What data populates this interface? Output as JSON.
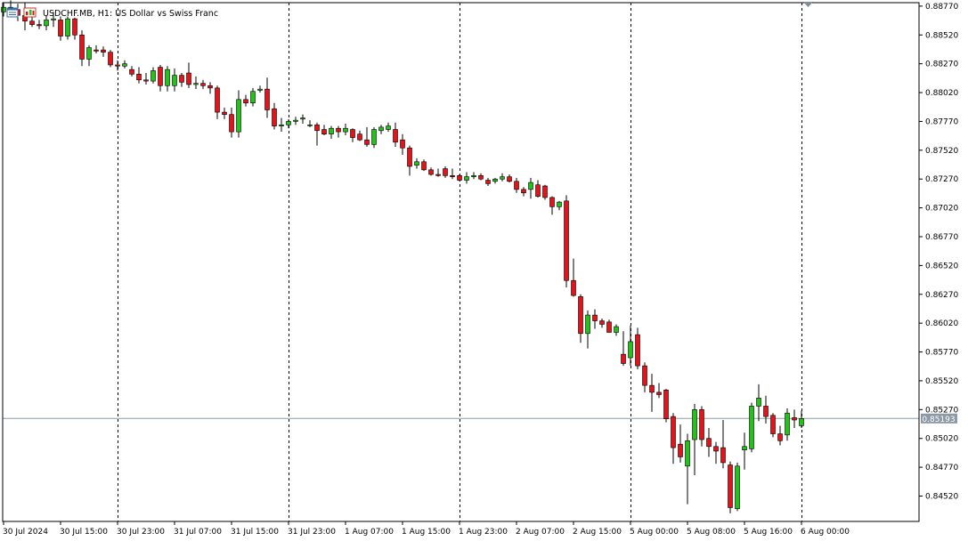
{
  "header": {
    "symbol_title": "USDCHF.MB, H1:  US Dollar vs Swiss Franc"
  },
  "icons": [
    "chart-window-icon",
    "trading-signals-icon",
    "chart-shift-marker-icon"
  ],
  "colors": {
    "bull": "#26c21c",
    "bear": "#e3151b",
    "wick": "#000000",
    "grid": "#000000",
    "bid_line": "#8c9aa6",
    "bid_tag": "#8c9aa6",
    "frame": "#000000"
  },
  "current_price": {
    "value": 0.85193,
    "label": "0.85193"
  },
  "chart_data": {
    "type": "candlestick",
    "symbol": "USDCHF.MB",
    "timeframe": "H1",
    "title": "USDCHF.MB, H1:  US Dollar vs Swiss Franc",
    "ylim": [
      0.843,
      0.888
    ],
    "y_ticks": [
      0.8877,
      0.8852,
      0.8827,
      0.8802,
      0.8777,
      0.8752,
      0.8727,
      0.8702,
      0.8677,
      0.8652,
      0.8627,
      0.8602,
      0.8577,
      0.8552,
      0.8527,
      0.8502,
      0.8477,
      0.8452
    ],
    "y_tick_labels": [
      "0.88770",
      "0.88520",
      "0.88270",
      "0.88020",
      "0.87770",
      "0.87520",
      "0.87270",
      "0.87020",
      "0.86770",
      "0.86520",
      "0.86270",
      "0.86020",
      "0.85770",
      "0.85520",
      "0.85270",
      "0.85020",
      "0.84770",
      "0.84520"
    ],
    "x_tick_labels": [
      "30 Jul 2024",
      "30 Jul 15:00",
      "30 Jul 23:00",
      "31 Jul 07:00",
      "31 Jul 15:00",
      "31 Jul 23:00",
      "1 Aug 07:00",
      "1 Aug 15:00",
      "1 Aug 23:00",
      "2 Aug 07:00",
      "2 Aug 15:00",
      "5 Aug 00:00",
      "5 Aug 08:00",
      "5 Aug 16:00",
      "6 Aug 00:00"
    ],
    "x_tick_bar_index": [
      0,
      8,
      16,
      24,
      32,
      40,
      48,
      56,
      64,
      72,
      80,
      88,
      96,
      104,
      112
    ],
    "day_separator_labels": [
      "30 Jul 23:00",
      "31 Jul 23:00",
      "1 Aug 23:00",
      "5 Aug 00:00",
      "6 Aug 00:00"
    ],
    "grid": false,
    "candles": [
      {
        "o": 0.8872,
        "h": 0.888,
        "l": 0.8868,
        "c": 0.8876
      },
      {
        "o": 0.8876,
        "h": 0.8882,
        "l": 0.887,
        "c": 0.8874
      },
      {
        "o": 0.8874,
        "h": 0.8879,
        "l": 0.8864,
        "c": 0.8869
      },
      {
        "o": 0.8869,
        "h": 0.888,
        "l": 0.8856,
        "c": 0.8864
      },
      {
        "o": 0.8864,
        "h": 0.8868,
        "l": 0.8859,
        "c": 0.8861
      },
      {
        "o": 0.8861,
        "h": 0.8865,
        "l": 0.8857,
        "c": 0.886
      },
      {
        "o": 0.886,
        "h": 0.8869,
        "l": 0.8856,
        "c": 0.8865
      },
      {
        "o": 0.8865,
        "h": 0.8872,
        "l": 0.8859,
        "c": 0.8866
      },
      {
        "o": 0.8865,
        "h": 0.8868,
        "l": 0.8847,
        "c": 0.8851
      },
      {
        "o": 0.8851,
        "h": 0.8868,
        "l": 0.8848,
        "c": 0.8866
      },
      {
        "o": 0.8866,
        "h": 0.8867,
        "l": 0.8848,
        "c": 0.8852
      },
      {
        "o": 0.8852,
        "h": 0.8856,
        "l": 0.8825,
        "c": 0.8831
      },
      {
        "o": 0.8831,
        "h": 0.8843,
        "l": 0.8825,
        "c": 0.8841
      },
      {
        "o": 0.8839,
        "h": 0.8843,
        "l": 0.8836,
        "c": 0.8838
      },
      {
        "o": 0.8839,
        "h": 0.8842,
        "l": 0.8833,
        "c": 0.8837
      },
      {
        "o": 0.8837,
        "h": 0.8839,
        "l": 0.8824,
        "c": 0.8826
      },
      {
        "o": 0.8826,
        "h": 0.883,
        "l": 0.8821,
        "c": 0.8825
      },
      {
        "o": 0.8825,
        "h": 0.883,
        "l": 0.8823,
        "c": 0.8827
      },
      {
        "o": 0.8822,
        "h": 0.8825,
        "l": 0.8816,
        "c": 0.8818
      },
      {
        "o": 0.8818,
        "h": 0.8824,
        "l": 0.881,
        "c": 0.8813
      },
      {
        "o": 0.8813,
        "h": 0.8819,
        "l": 0.8809,
        "c": 0.8812
      },
      {
        "o": 0.8812,
        "h": 0.8824,
        "l": 0.881,
        "c": 0.8821
      },
      {
        "o": 0.8824,
        "h": 0.8826,
        "l": 0.8803,
        "c": 0.8808
      },
      {
        "o": 0.8808,
        "h": 0.8825,
        "l": 0.8803,
        "c": 0.8822
      },
      {
        "o": 0.8808,
        "h": 0.8823,
        "l": 0.8803,
        "c": 0.8817
      },
      {
        "o": 0.8817,
        "h": 0.8819,
        "l": 0.8807,
        "c": 0.8811
      },
      {
        "o": 0.8819,
        "h": 0.8828,
        "l": 0.8806,
        "c": 0.8809
      },
      {
        "o": 0.8809,
        "h": 0.8816,
        "l": 0.8805,
        "c": 0.881
      },
      {
        "o": 0.881,
        "h": 0.8813,
        "l": 0.8805,
        "c": 0.8808
      },
      {
        "o": 0.8808,
        "h": 0.8811,
        "l": 0.8801,
        "c": 0.8806
      },
      {
        "o": 0.8806,
        "h": 0.8808,
        "l": 0.8779,
        "c": 0.8785
      },
      {
        "o": 0.8785,
        "h": 0.8789,
        "l": 0.8779,
        "c": 0.8783
      },
      {
        "o": 0.8783,
        "h": 0.8789,
        "l": 0.8763,
        "c": 0.8768
      },
      {
        "o": 0.8768,
        "h": 0.8804,
        "l": 0.8763,
        "c": 0.8796
      },
      {
        "o": 0.8796,
        "h": 0.88,
        "l": 0.879,
        "c": 0.8793
      },
      {
        "o": 0.8793,
        "h": 0.8806,
        "l": 0.879,
        "c": 0.8803
      },
      {
        "o": 0.8804,
        "h": 0.8808,
        "l": 0.8802,
        "c": 0.8805
      },
      {
        "o": 0.8805,
        "h": 0.8815,
        "l": 0.878,
        "c": 0.8787
      },
      {
        "o": 0.8788,
        "h": 0.8793,
        "l": 0.877,
        "c": 0.8773
      },
      {
        "o": 0.8773,
        "h": 0.878,
        "l": 0.8768,
        "c": 0.8774
      },
      {
        "o": 0.8774,
        "h": 0.8779,
        "l": 0.8771,
        "c": 0.8777
      },
      {
        "o": 0.8777,
        "h": 0.8781,
        "l": 0.8774,
        "c": 0.8778
      },
      {
        "o": 0.8779,
        "h": 0.8783,
        "l": 0.8775,
        "c": 0.878
      },
      {
        "o": 0.8774,
        "h": 0.8778,
        "l": 0.8772,
        "c": 0.8774
      },
      {
        "o": 0.8774,
        "h": 0.8776,
        "l": 0.8756,
        "c": 0.8769
      },
      {
        "o": 0.877,
        "h": 0.8774,
        "l": 0.8765,
        "c": 0.8766
      },
      {
        "o": 0.8766,
        "h": 0.8773,
        "l": 0.8762,
        "c": 0.8771
      },
      {
        "o": 0.8771,
        "h": 0.8773,
        "l": 0.8763,
        "c": 0.8768
      },
      {
        "o": 0.8768,
        "h": 0.8775,
        "l": 0.8765,
        "c": 0.8771
      },
      {
        "o": 0.877,
        "h": 0.8771,
        "l": 0.8759,
        "c": 0.8763
      },
      {
        "o": 0.8766,
        "h": 0.8769,
        "l": 0.876,
        "c": 0.8761
      },
      {
        "o": 0.8761,
        "h": 0.8772,
        "l": 0.8755,
        "c": 0.8757
      },
      {
        "o": 0.8757,
        "h": 0.8772,
        "l": 0.8754,
        "c": 0.877
      },
      {
        "o": 0.8769,
        "h": 0.8774,
        "l": 0.8766,
        "c": 0.8772
      },
      {
        "o": 0.877,
        "h": 0.8776,
        "l": 0.8768,
        "c": 0.8773
      },
      {
        "o": 0.877,
        "h": 0.8776,
        "l": 0.8755,
        "c": 0.8759
      },
      {
        "o": 0.8761,
        "h": 0.8766,
        "l": 0.8748,
        "c": 0.8754
      },
      {
        "o": 0.8754,
        "h": 0.8756,
        "l": 0.873,
        "c": 0.8738
      },
      {
        "o": 0.8739,
        "h": 0.8745,
        "l": 0.8736,
        "c": 0.8742
      },
      {
        "o": 0.8742,
        "h": 0.8744,
        "l": 0.8734,
        "c": 0.8735
      },
      {
        "o": 0.8735,
        "h": 0.8737,
        "l": 0.873,
        "c": 0.8731
      },
      {
        "o": 0.8731,
        "h": 0.8736,
        "l": 0.8729,
        "c": 0.873
      },
      {
        "o": 0.8736,
        "h": 0.8738,
        "l": 0.8728,
        "c": 0.873
      },
      {
        "o": 0.873,
        "h": 0.8736,
        "l": 0.8727,
        "c": 0.8729
      },
      {
        "o": 0.873,
        "h": 0.8731,
        "l": 0.8725,
        "c": 0.8726
      },
      {
        "o": 0.8726,
        "h": 0.8733,
        "l": 0.8723,
        "c": 0.8729
      },
      {
        "o": 0.8729,
        "h": 0.8733,
        "l": 0.8727,
        "c": 0.873
      },
      {
        "o": 0.873,
        "h": 0.8732,
        "l": 0.8726,
        "c": 0.8727
      },
      {
        "o": 0.8726,
        "h": 0.8728,
        "l": 0.8721,
        "c": 0.8723
      },
      {
        "o": 0.8725,
        "h": 0.8728,
        "l": 0.8723,
        "c": 0.8727
      },
      {
        "o": 0.8727,
        "h": 0.8732,
        "l": 0.8725,
        "c": 0.8729
      },
      {
        "o": 0.8729,
        "h": 0.8731,
        "l": 0.8724,
        "c": 0.8725
      },
      {
        "o": 0.8725,
        "h": 0.8728,
        "l": 0.8715,
        "c": 0.8718
      },
      {
        "o": 0.8718,
        "h": 0.872,
        "l": 0.8712,
        "c": 0.8715
      },
      {
        "o": 0.8718,
        "h": 0.8728,
        "l": 0.871,
        "c": 0.8724
      },
      {
        "o": 0.8722,
        "h": 0.8726,
        "l": 0.8711,
        "c": 0.8712
      },
      {
        "o": 0.8721,
        "h": 0.8722,
        "l": 0.8709,
        "c": 0.8711
      },
      {
        "o": 0.8711,
        "h": 0.8712,
        "l": 0.8696,
        "c": 0.8703
      },
      {
        "o": 0.8703,
        "h": 0.8708,
        "l": 0.87,
        "c": 0.8707
      },
      {
        "o": 0.8708,
        "h": 0.8713,
        "l": 0.8633,
        "c": 0.8639
      },
      {
        "o": 0.8639,
        "h": 0.8658,
        "l": 0.8625,
        "c": 0.8626
      },
      {
        "o": 0.8625,
        "h": 0.8627,
        "l": 0.8585,
        "c": 0.8593
      },
      {
        "o": 0.8593,
        "h": 0.8613,
        "l": 0.858,
        "c": 0.8609
      },
      {
        "o": 0.8609,
        "h": 0.8614,
        "l": 0.8597,
        "c": 0.8604
      },
      {
        "o": 0.8604,
        "h": 0.8606,
        "l": 0.8598,
        "c": 0.8601
      },
      {
        "o": 0.8603,
        "h": 0.8605,
        "l": 0.8594,
        "c": 0.8594
      },
      {
        "o": 0.8594,
        "h": 0.8601,
        "l": 0.8591,
        "c": 0.8599
      },
      {
        "o": 0.8575,
        "h": 0.8595,
        "l": 0.8565,
        "c": 0.8567
      },
      {
        "o": 0.8572,
        "h": 0.86,
        "l": 0.8565,
        "c": 0.8586
      },
      {
        "o": 0.8592,
        "h": 0.8598,
        "l": 0.8562,
        "c": 0.8565
      },
      {
        "o": 0.8565,
        "h": 0.8568,
        "l": 0.8542,
        "c": 0.8548
      },
      {
        "o": 0.8548,
        "h": 0.8558,
        "l": 0.8525,
        "c": 0.8542
      },
      {
        "o": 0.8542,
        "h": 0.855,
        "l": 0.8537,
        "c": 0.854
      },
      {
        "o": 0.8544,
        "h": 0.8545,
        "l": 0.8516,
        "c": 0.8519
      },
      {
        "o": 0.8521,
        "h": 0.8524,
        "l": 0.848,
        "c": 0.8494
      },
      {
        "o": 0.8497,
        "h": 0.8514,
        "l": 0.8481,
        "c": 0.8486
      },
      {
        "o": 0.8478,
        "h": 0.8506,
        "l": 0.8445,
        "c": 0.85
      },
      {
        "o": 0.8501,
        "h": 0.8532,
        "l": 0.847,
        "c": 0.8527
      },
      {
        "o": 0.8527,
        "h": 0.853,
        "l": 0.8495,
        "c": 0.8501
      },
      {
        "o": 0.8502,
        "h": 0.8511,
        "l": 0.8486,
        "c": 0.8495
      },
      {
        "o": 0.8495,
        "h": 0.8499,
        "l": 0.848,
        "c": 0.8491
      },
      {
        "o": 0.8494,
        "h": 0.8518,
        "l": 0.8476,
        "c": 0.8481
      },
      {
        "o": 0.8479,
        "h": 0.8482,
        "l": 0.8437,
        "c": 0.8442
      },
      {
        "o": 0.8441,
        "h": 0.8481,
        "l": 0.8439,
        "c": 0.8478
      },
      {
        "o": 0.8492,
        "h": 0.8507,
        "l": 0.8475,
        "c": 0.8495
      },
      {
        "o": 0.8493,
        "h": 0.8533,
        "l": 0.849,
        "c": 0.853
      },
      {
        "o": 0.853,
        "h": 0.8549,
        "l": 0.8517,
        "c": 0.8537
      },
      {
        "o": 0.853,
        "h": 0.8539,
        "l": 0.8515,
        "c": 0.8521
      },
      {
        "o": 0.8522,
        "h": 0.8524,
        "l": 0.8503,
        "c": 0.8506
      },
      {
        "o": 0.8506,
        "h": 0.8513,
        "l": 0.8496,
        "c": 0.85
      },
      {
        "o": 0.8505,
        "h": 0.8528,
        "l": 0.85,
        "c": 0.8524
      },
      {
        "o": 0.852,
        "h": 0.8527,
        "l": 0.8511,
        "c": 0.8518
      },
      {
        "o": 0.8513,
        "h": 0.8526,
        "l": 0.8511,
        "c": 0.85193
      }
    ]
  }
}
